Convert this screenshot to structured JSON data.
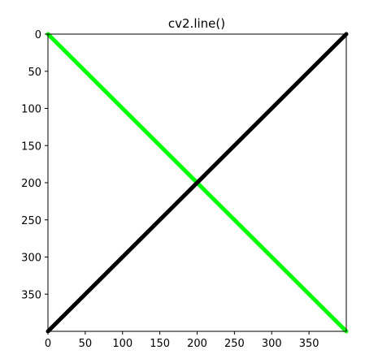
{
  "figure": {
    "title": "cv2.line()"
  },
  "chart_data": {
    "type": "line",
    "title": "cv2.line()",
    "xlabel": "",
    "ylabel": "",
    "xlim": [
      0,
      400
    ],
    "ylim": [
      400,
      0
    ],
    "y_inverted": true,
    "grid": false,
    "x_ticks": [
      0,
      50,
      100,
      150,
      200,
      250,
      300,
      350
    ],
    "y_ticks": [
      0,
      50,
      100,
      150,
      200,
      250,
      300,
      350
    ],
    "series": [
      {
        "color": "#00ff00",
        "points": [
          [
            0,
            0
          ],
          [
            400,
            400
          ]
        ]
      },
      {
        "color": "#000000",
        "points": [
          [
            0,
            400
          ],
          [
            400,
            0
          ]
        ]
      }
    ]
  }
}
